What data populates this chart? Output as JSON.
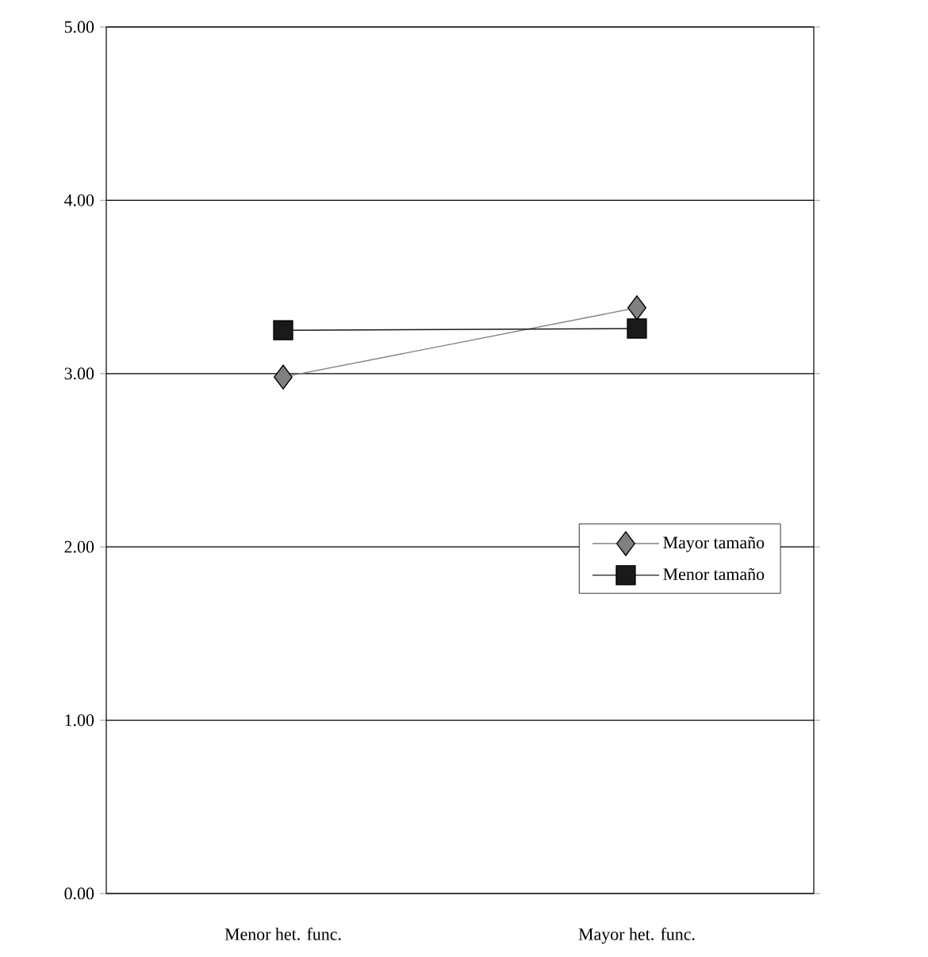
{
  "chart_data": {
    "type": "line",
    "categories": [
      "Menor het. func.",
      "Mayor het. func."
    ],
    "series": [
      {
        "name": "Mayor tamaño",
        "color": "#808080",
        "marker": "diamond",
        "values": [
          2.98,
          3.38
        ]
      },
      {
        "name": "Menor tamaño",
        "color": "#1a1a1a",
        "marker": "square",
        "values": [
          3.25,
          3.26
        ]
      }
    ],
    "ylim": [
      0,
      5
    ],
    "yticks": [
      {
        "value": 0,
        "label": "0.00"
      },
      {
        "value": 1,
        "label": "1.00"
      },
      {
        "value": 2,
        "label": "2.00"
      },
      {
        "value": 3,
        "label": "3.00"
      },
      {
        "value": 4,
        "label": "4.00"
      },
      {
        "value": 5,
        "label": "5.00"
      }
    ],
    "grid": "y",
    "legend": "right",
    "line_style": "solid"
  }
}
